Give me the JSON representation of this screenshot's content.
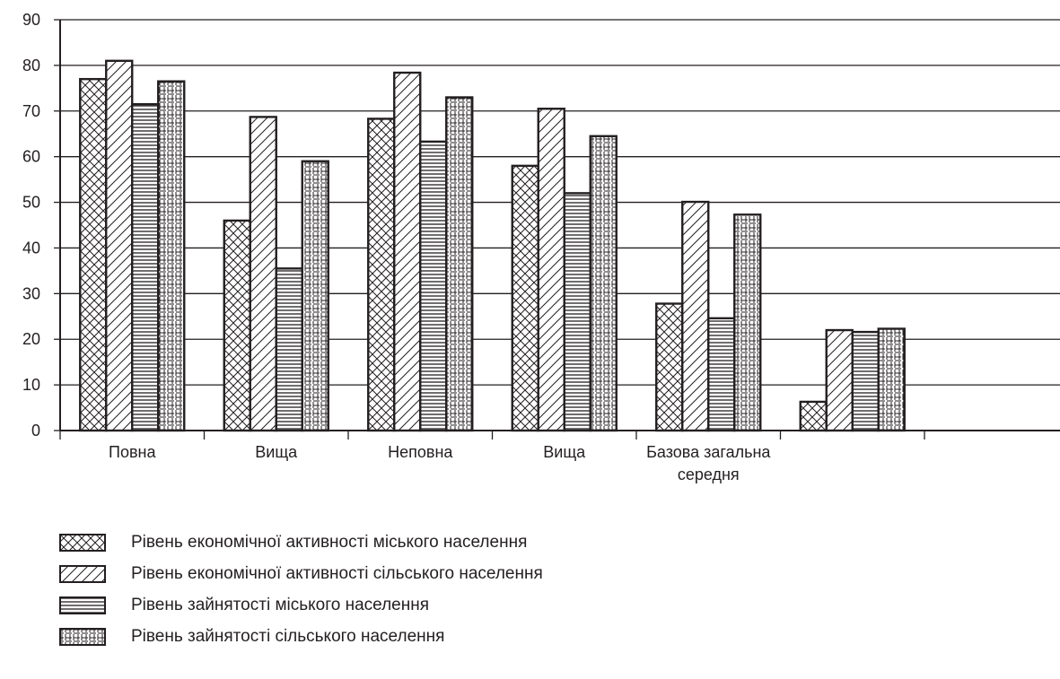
{
  "chart_data": {
    "type": "bar",
    "title": "",
    "xlabel": "",
    "ylabel": "",
    "ylim": [
      0,
      90
    ],
    "yticks": [
      0,
      10,
      20,
      30,
      40,
      50,
      60,
      70,
      80,
      90
    ],
    "grid": true,
    "legend_position": "bottom",
    "categories": [
      [
        "Повна"
      ],
      [
        "Вища"
      ],
      [
        "Неповна"
      ],
      [
        "Вища"
      ],
      [
        "Базова загальна",
        "середня"
      ],
      [
        ""
      ]
    ],
    "series": [
      {
        "name": "Рівень економічної активності міського населення",
        "pattern": "crosshatch",
        "values": [
          77,
          46,
          68.3,
          58,
          27.8,
          6.3
        ]
      },
      {
        "name": "Рівень економічної активності сільського населення",
        "pattern": "diagonal",
        "values": [
          81,
          68.7,
          78.4,
          70.5,
          50.1,
          22
        ]
      },
      {
        "name": "Рівень зайнятості міського населення",
        "pattern": "horizontal",
        "values": [
          71.5,
          35.5,
          63.3,
          52,
          24.6,
          21.6
        ]
      },
      {
        "name": "Рівень зайнятості сільського населення",
        "pattern": "grid",
        "values": [
          76.5,
          59,
          73,
          64.5,
          47.3,
          22.3
        ]
      }
    ]
  }
}
